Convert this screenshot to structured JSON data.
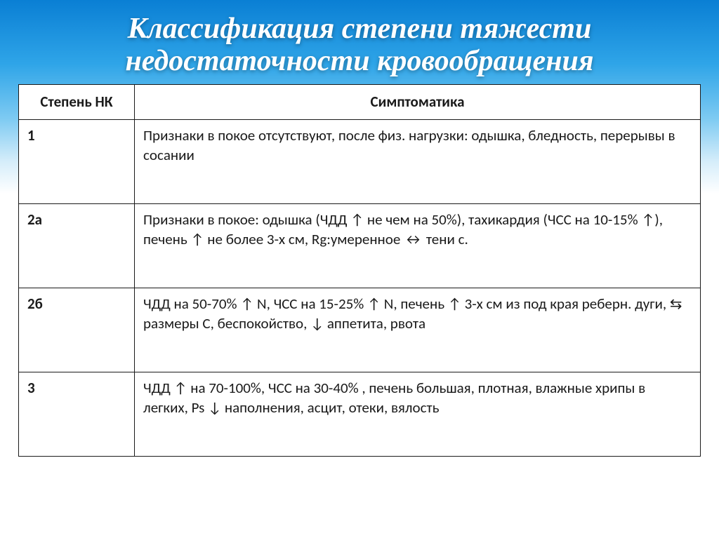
{
  "slide": {
    "title_line1": "Классификация степени тяжести",
    "title_line2": "недостаточности кровообращения",
    "table": {
      "header": {
        "col1": "Степень НК",
        "col2": "Симптоматика"
      },
      "rows": [
        {
          "degree": "1",
          "symptoms": "Признаки в покое отсутствуют, после физ. нагрузки: одышка, бледность, перерывы в сосании"
        },
        {
          "degree": "2а",
          "symptoms": "Признаки в покое: одышка (ЧДД ↑ не чем на 50%), тахикардия (ЧСС на 10-15% ↑), печень ↑ не более 3-х см, Rg:умеренное ↔ тени с."
        },
        {
          "degree": "2б",
          "symptoms": "ЧДД на 50-70% ↑ N, ЧСС на 15-25% ↑ N, печень ↑ 3-х см из под края реберн. дуги, ⇆ размеры С, беспокойство, ↓ аппетита, рвота"
        },
        {
          "degree": "3",
          "symptoms": "ЧДД ↑ на 70-100%, ЧСС на 30-40% , печень большая, плотная, влажные хрипы в легких,  Ps ↓ наполнения, асцит, отеки, вялость"
        }
      ]
    }
  },
  "style": {
    "title_color": "#ffffff",
    "title_fontsize": 42,
    "cell_fontsize": 21,
    "border_color": "#1a1a1a",
    "bg_gradient_top": "#0a7fd4",
    "bg_gradient_mid": "#7dcaf2",
    "bg_gradient_bottom": "#ffffff",
    "col1_width": 165,
    "slide_width": 1024,
    "slide_height": 767
  }
}
